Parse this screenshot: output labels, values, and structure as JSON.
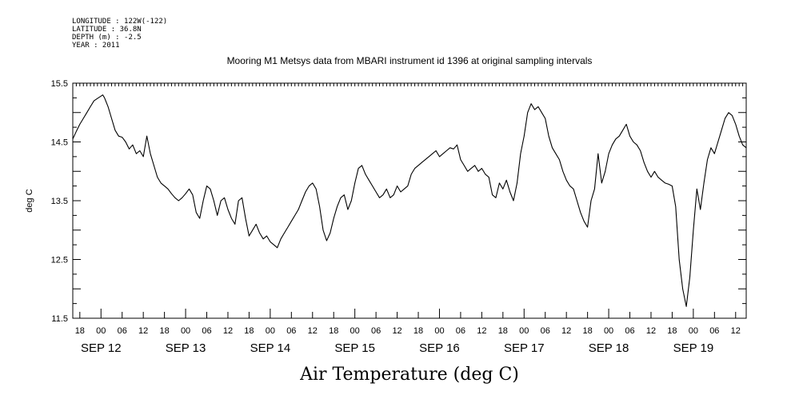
{
  "chart_data": {
    "type": "line",
    "meta": [
      "LONGITUDE : 122W(-122)",
      "LATITUDE : 36.8N",
      "DEPTH (m) : -2.5",
      "YEAR : 2011"
    ],
    "title": "Mooring M1 Metsys data from MBARI instrument id 1396 at original sampling intervals",
    "xlabel": "Air Temperature (deg C)",
    "ylabel": "deg C",
    "ylim": [
      11.5,
      15.5
    ],
    "yticks": [
      "11.5",
      "12.5",
      "13.5",
      "14.5",
      "15.5"
    ],
    "xlim_hours": [
      -8,
      183
    ],
    "hour_tick_labels": [
      "18",
      "00",
      "06",
      "12",
      "18",
      "00",
      "06",
      "12",
      "18",
      "00",
      "06",
      "12",
      "18",
      "00",
      "06",
      "12",
      "18",
      "00",
      "06",
      "12",
      "18",
      "00",
      "06",
      "12",
      "18",
      "00",
      "06",
      "12",
      "18",
      "00",
      "06",
      "12"
    ],
    "day_labels": [
      "SEP 12",
      "SEP 13",
      "SEP 14",
      "SEP 15",
      "SEP 16",
      "SEP 17",
      "SEP 18",
      "SEP 19"
    ],
    "grid": false,
    "series": [
      {
        "color": "#000000",
        "points": [
          [
            -8,
            14.55
          ],
          [
            -7,
            14.68
          ],
          [
            -6,
            14.8
          ],
          [
            -5,
            14.9
          ],
          [
            -4,
            15.0
          ],
          [
            -3,
            15.1
          ],
          [
            -2,
            15.2
          ],
          [
            -1,
            15.24
          ],
          [
            0,
            15.28
          ],
          [
            0.5,
            15.3
          ],
          [
            1,
            15.25
          ],
          [
            2,
            15.1
          ],
          [
            3,
            14.9
          ],
          [
            4,
            14.7
          ],
          [
            5,
            14.6
          ],
          [
            6,
            14.58
          ],
          [
            7,
            14.5
          ],
          [
            8,
            14.38
          ],
          [
            9,
            14.45
          ],
          [
            10,
            14.3
          ],
          [
            11,
            14.35
          ],
          [
            12,
            14.25
          ],
          [
            13,
            14.6
          ],
          [
            14,
            14.3
          ],
          [
            15,
            14.1
          ],
          [
            16,
            13.9
          ],
          [
            17,
            13.8
          ],
          [
            18,
            13.75
          ],
          [
            19,
            13.7
          ],
          [
            20,
            13.62
          ],
          [
            21,
            13.55
          ],
          [
            22,
            13.5
          ],
          [
            23,
            13.55
          ],
          [
            24,
            13.62
          ],
          [
            25,
            13.7
          ],
          [
            26,
            13.6
          ],
          [
            27,
            13.3
          ],
          [
            28,
            13.2
          ],
          [
            29,
            13.5
          ],
          [
            30,
            13.75
          ],
          [
            31,
            13.7
          ],
          [
            32,
            13.5
          ],
          [
            33,
            13.25
          ],
          [
            34,
            13.5
          ],
          [
            35,
            13.55
          ],
          [
            36,
            13.35
          ],
          [
            37,
            13.2
          ],
          [
            38,
            13.1
          ],
          [
            39,
            13.5
          ],
          [
            40,
            13.55
          ],
          [
            41,
            13.2
          ],
          [
            42,
            12.9
          ],
          [
            43,
            13.0
          ],
          [
            44,
            13.1
          ],
          [
            45,
            12.95
          ],
          [
            46,
            12.85
          ],
          [
            47,
            12.9
          ],
          [
            48,
            12.8
          ],
          [
            49,
            12.75
          ],
          [
            50,
            12.7
          ],
          [
            51,
            12.85
          ],
          [
            52,
            12.95
          ],
          [
            53,
            13.05
          ],
          [
            54,
            13.15
          ],
          [
            55,
            13.25
          ],
          [
            56,
            13.35
          ],
          [
            57,
            13.5
          ],
          [
            58,
            13.65
          ],
          [
            59,
            13.75
          ],
          [
            60,
            13.8
          ],
          [
            61,
            13.7
          ],
          [
            62,
            13.4
          ],
          [
            63,
            13.0
          ],
          [
            64,
            12.82
          ],
          [
            65,
            12.95
          ],
          [
            66,
            13.2
          ],
          [
            67,
            13.4
          ],
          [
            68,
            13.55
          ],
          [
            69,
            13.6
          ],
          [
            70,
            13.35
          ],
          [
            71,
            13.5
          ],
          [
            72,
            13.8
          ],
          [
            73,
            14.05
          ],
          [
            74,
            14.1
          ],
          [
            75,
            13.95
          ],
          [
            76,
            13.85
          ],
          [
            77,
            13.75
          ],
          [
            78,
            13.65
          ],
          [
            79,
            13.55
          ],
          [
            80,
            13.6
          ],
          [
            81,
            13.7
          ],
          [
            82,
            13.55
          ],
          [
            83,
            13.6
          ],
          [
            84,
            13.75
          ],
          [
            85,
            13.65
          ],
          [
            86,
            13.7
          ],
          [
            87,
            13.75
          ],
          [
            88,
            13.95
          ],
          [
            89,
            14.05
          ],
          [
            90,
            14.1
          ],
          [
            91,
            14.15
          ],
          [
            92,
            14.2
          ],
          [
            93,
            14.25
          ],
          [
            94,
            14.3
          ],
          [
            95,
            14.35
          ],
          [
            96,
            14.25
          ],
          [
            97,
            14.3
          ],
          [
            98,
            14.35
          ],
          [
            99,
            14.4
          ],
          [
            100,
            14.38
          ],
          [
            101,
            14.45
          ],
          [
            102,
            14.2
          ],
          [
            103,
            14.1
          ],
          [
            104,
            14.0
          ],
          [
            105,
            14.05
          ],
          [
            106,
            14.1
          ],
          [
            107,
            14.0
          ],
          [
            108,
            14.05
          ],
          [
            109,
            13.95
          ],
          [
            110,
            13.9
          ],
          [
            111,
            13.6
          ],
          [
            112,
            13.55
          ],
          [
            113,
            13.8
          ],
          [
            114,
            13.7
          ],
          [
            115,
            13.85
          ],
          [
            116,
            13.65
          ],
          [
            117,
            13.5
          ],
          [
            118,
            13.8
          ],
          [
            119,
            14.3
          ],
          [
            120,
            14.6
          ],
          [
            121,
            15.0
          ],
          [
            122,
            15.15
          ],
          [
            123,
            15.05
          ],
          [
            124,
            15.1
          ],
          [
            125,
            15.0
          ],
          [
            126,
            14.9
          ],
          [
            127,
            14.6
          ],
          [
            128,
            14.4
          ],
          [
            129,
            14.3
          ],
          [
            130,
            14.2
          ],
          [
            131,
            14.0
          ],
          [
            132,
            13.85
          ],
          [
            133,
            13.75
          ],
          [
            134,
            13.7
          ],
          [
            135,
            13.5
          ],
          [
            136,
            13.3
          ],
          [
            137,
            13.15
          ],
          [
            138,
            13.05
          ],
          [
            139,
            13.5
          ],
          [
            140,
            13.7
          ],
          [
            141,
            14.3
          ],
          [
            142,
            13.8
          ],
          [
            143,
            14.0
          ],
          [
            144,
            14.3
          ],
          [
            145,
            14.45
          ],
          [
            146,
            14.55
          ],
          [
            147,
            14.6
          ],
          [
            148,
            14.7
          ],
          [
            149,
            14.8
          ],
          [
            150,
            14.6
          ],
          [
            151,
            14.5
          ],
          [
            152,
            14.45
          ],
          [
            153,
            14.35
          ],
          [
            154,
            14.15
          ],
          [
            155,
            14.0
          ],
          [
            156,
            13.9
          ],
          [
            157,
            14.0
          ],
          [
            158,
            13.9
          ],
          [
            159,
            13.85
          ],
          [
            160,
            13.8
          ],
          [
            161,
            13.78
          ],
          [
            162,
            13.75
          ],
          [
            163,
            13.4
          ],
          [
            164,
            12.5
          ],
          [
            165,
            12.0
          ],
          [
            166,
            11.7
          ],
          [
            167,
            12.2
          ],
          [
            168,
            13.0
          ],
          [
            169,
            13.7
          ],
          [
            170,
            13.35
          ],
          [
            171,
            13.8
          ],
          [
            172,
            14.2
          ],
          [
            173,
            14.4
          ],
          [
            174,
            14.3
          ],
          [
            175,
            14.5
          ],
          [
            176,
            14.7
          ],
          [
            177,
            14.9
          ],
          [
            178,
            15.0
          ],
          [
            179,
            14.95
          ],
          [
            180,
            14.8
          ],
          [
            181,
            14.6
          ],
          [
            182,
            14.45
          ],
          [
            183,
            14.4
          ]
        ]
      }
    ]
  }
}
